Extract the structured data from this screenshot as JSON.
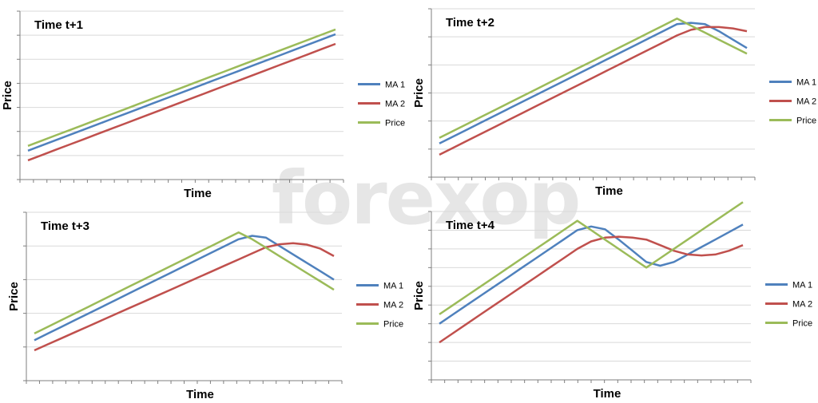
{
  "watermark": {
    "text": "forexop"
  },
  "colors": {
    "ma1": "#4f81bd",
    "ma2": "#c0504d",
    "price": "#9bbb59",
    "grid": "#d9d9d9",
    "axis": "#7f7f7f"
  },
  "chart_data": [
    {
      "type": "line",
      "title": "Time t+1",
      "xlabel": "Time",
      "ylabel": "Price",
      "x": [
        0,
        1,
        2,
        3,
        4,
        5,
        6,
        7,
        8,
        9,
        10,
        11,
        12,
        13,
        14,
        15,
        16,
        17,
        18,
        19,
        20,
        21,
        22
      ],
      "ylim": [
        0,
        7
      ],
      "grid": true,
      "legend": "right",
      "series": [
        {
          "name": "MA 1",
          "values": [
            1.2,
            1.42,
            1.64,
            1.86,
            2.08,
            2.3,
            2.52,
            2.74,
            2.96,
            3.18,
            3.4,
            3.62,
            3.84,
            4.06,
            4.28,
            4.5,
            4.72,
            4.94,
            5.16,
            5.38,
            5.6,
            5.82,
            6.04
          ]
        },
        {
          "name": "MA 2",
          "values": [
            0.8,
            1.02,
            1.24,
            1.46,
            1.68,
            1.9,
            2.12,
            2.34,
            2.56,
            2.78,
            3.0,
            3.22,
            3.44,
            3.66,
            3.88,
            4.1,
            4.32,
            4.54,
            4.76,
            4.98,
            5.2,
            5.42,
            5.64
          ]
        },
        {
          "name": "Price",
          "values": [
            1.4,
            1.62,
            1.84,
            2.06,
            2.28,
            2.5,
            2.72,
            2.94,
            3.16,
            3.38,
            3.6,
            3.82,
            4.04,
            4.26,
            4.48,
            4.7,
            4.92,
            5.14,
            5.36,
            5.58,
            5.8,
            6.02,
            6.24
          ]
        }
      ]
    },
    {
      "type": "line",
      "title": "Time t+2",
      "xlabel": "Time",
      "ylabel": "Price",
      "x": [
        0,
        1,
        2,
        3,
        4,
        5,
        6,
        7,
        8,
        9,
        10,
        11,
        12,
        13,
        14,
        15,
        16,
        17,
        18,
        19,
        20,
        21,
        22
      ],
      "ylim": [
        0,
        6
      ],
      "grid": true,
      "legend": "right",
      "series": [
        {
          "name": "MA 1",
          "values": [
            1.2,
            1.45,
            1.7,
            1.95,
            2.2,
            2.45,
            2.7,
            2.95,
            3.2,
            3.45,
            3.7,
            3.95,
            4.2,
            4.45,
            4.7,
            4.95,
            5.2,
            5.45,
            5.5,
            5.45,
            5.2,
            4.9,
            4.6
          ]
        },
        {
          "name": "MA 2",
          "values": [
            0.8,
            1.05,
            1.3,
            1.55,
            1.8,
            2.05,
            2.3,
            2.55,
            2.8,
            3.05,
            3.3,
            3.55,
            3.8,
            4.05,
            4.3,
            4.55,
            4.8,
            5.05,
            5.25,
            5.35,
            5.35,
            5.3,
            5.2
          ]
        },
        {
          "name": "Price",
          "values": [
            1.4,
            1.65,
            1.9,
            2.15,
            2.4,
            2.65,
            2.9,
            3.15,
            3.4,
            3.65,
            3.9,
            4.15,
            4.4,
            4.65,
            4.9,
            5.15,
            5.4,
            5.65,
            5.4,
            5.15,
            4.9,
            4.65,
            4.4
          ]
        }
      ]
    },
    {
      "type": "line",
      "title": "Time t+3",
      "xlabel": "Time",
      "ylabel": "Price",
      "x": [
        0,
        1,
        2,
        3,
        4,
        5,
        6,
        7,
        8,
        9,
        10,
        11,
        12,
        13,
        14,
        15,
        16,
        17,
        18,
        19,
        20,
        21,
        22
      ],
      "ylim": [
        0,
        5
      ],
      "grid": true,
      "legend": "right",
      "series": [
        {
          "name": "MA 1",
          "values": [
            1.2,
            1.4,
            1.6,
            1.8,
            2.0,
            2.2,
            2.4,
            2.6,
            2.8,
            3.0,
            3.2,
            3.4,
            3.6,
            3.8,
            4.0,
            4.2,
            4.3,
            4.25,
            4.0,
            3.75,
            3.5,
            3.25,
            3.0
          ]
        },
        {
          "name": "MA 2",
          "values": [
            0.9,
            1.08,
            1.26,
            1.44,
            1.62,
            1.8,
            1.98,
            2.16,
            2.34,
            2.52,
            2.7,
            2.88,
            3.06,
            3.24,
            3.42,
            3.6,
            3.78,
            3.96,
            4.05,
            4.08,
            4.04,
            3.92,
            3.7
          ]
        },
        {
          "name": "Price",
          "values": [
            1.4,
            1.6,
            1.8,
            2.0,
            2.2,
            2.4,
            2.6,
            2.8,
            3.0,
            3.2,
            3.4,
            3.6,
            3.8,
            4.0,
            4.2,
            4.4,
            4.2,
            3.95,
            3.7,
            3.45,
            3.2,
            2.95,
            2.7
          ]
        }
      ]
    },
    {
      "type": "line",
      "title": "Time t+4",
      "xlabel": "Time",
      "ylabel": "Price",
      "x": [
        0,
        1,
        2,
        3,
        4,
        5,
        6,
        7,
        8,
        9,
        10,
        11,
        12,
        13,
        14,
        15,
        16,
        17,
        18,
        19,
        20,
        21,
        22
      ],
      "ylim": [
        0,
        9
      ],
      "grid": true,
      "legend": "right",
      "series": [
        {
          "name": "MA 1",
          "values": [
            3.0,
            3.5,
            4.0,
            4.5,
            5.0,
            5.5,
            6.0,
            6.5,
            7.0,
            7.5,
            8.0,
            8.2,
            8.05,
            7.5,
            6.9,
            6.3,
            6.1,
            6.3,
            6.7,
            7.1,
            7.5,
            7.9,
            8.3
          ]
        },
        {
          "name": "MA 2",
          "values": [
            2.0,
            2.5,
            3.0,
            3.5,
            4.0,
            4.5,
            5.0,
            5.5,
            6.0,
            6.5,
            7.0,
            7.4,
            7.6,
            7.65,
            7.6,
            7.5,
            7.2,
            6.9,
            6.7,
            6.65,
            6.7,
            6.9,
            7.2
          ]
        },
        {
          "name": "Price",
          "values": [
            3.5,
            4.0,
            4.5,
            5.0,
            5.5,
            6.0,
            6.5,
            7.0,
            7.5,
            8.0,
            8.5,
            8.0,
            7.5,
            7.0,
            6.5,
            6.0,
            6.5,
            7.0,
            7.5,
            8.0,
            8.5,
            9.0,
            9.5
          ]
        }
      ]
    }
  ]
}
